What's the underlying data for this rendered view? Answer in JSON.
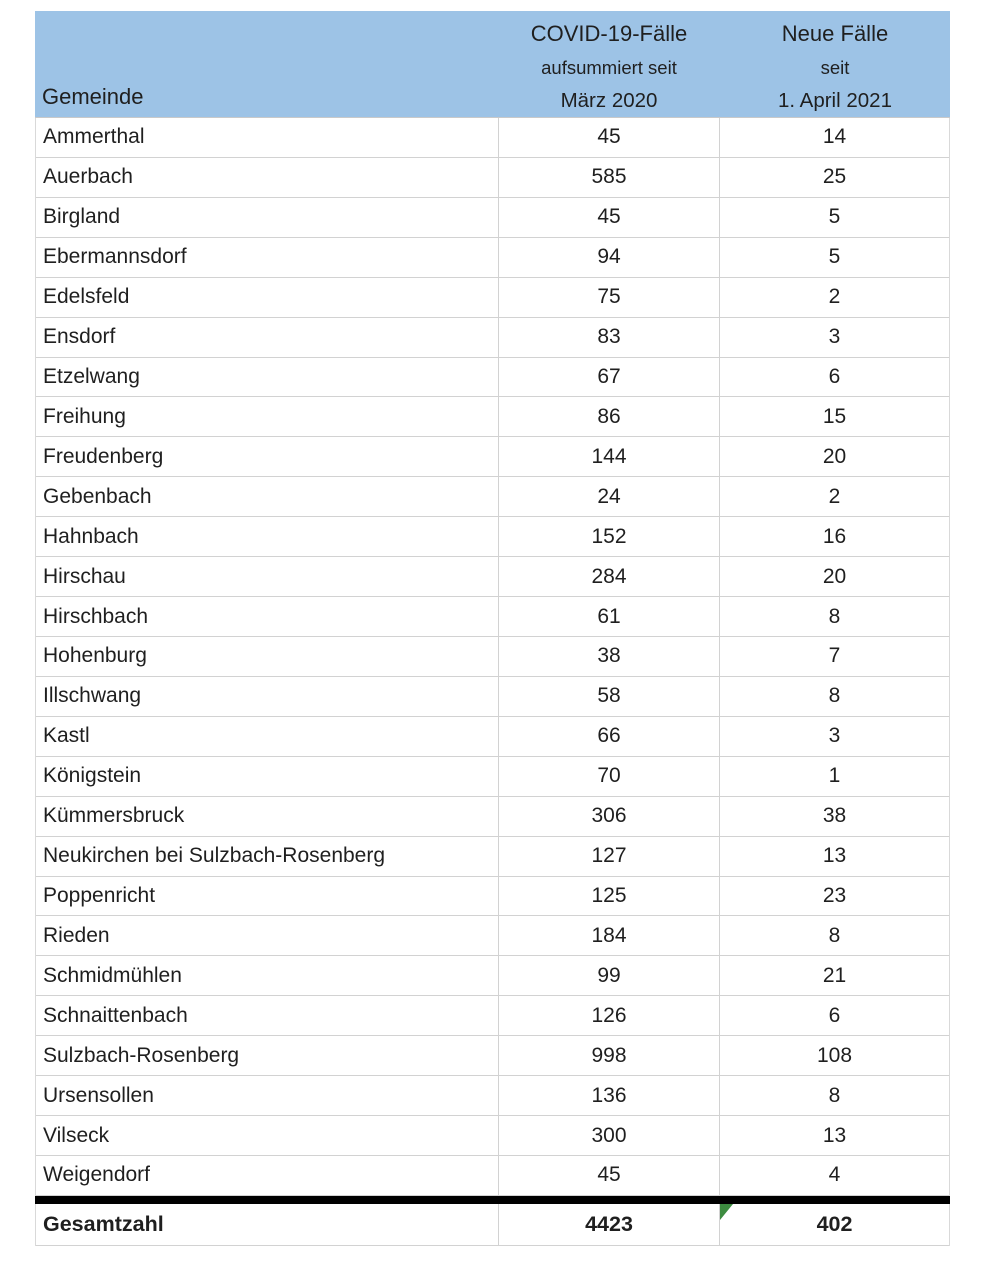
{
  "table": {
    "header": {
      "gemeinde": "Gemeinde",
      "cases_line1": "COVID-19-Fälle",
      "cases_line2": "aufsummiert seit",
      "cases_line3": "März 2020",
      "new_line1": "Neue Fälle",
      "new_line2": "seit",
      "new_line3": "1. April 2021"
    },
    "rows": [
      {
        "gemeinde": "Ammerthal",
        "cases": 45,
        "new": 14
      },
      {
        "gemeinde": "Auerbach",
        "cases": 585,
        "new": 25
      },
      {
        "gemeinde": "Birgland",
        "cases": 45,
        "new": 5
      },
      {
        "gemeinde": "Ebermannsdorf",
        "cases": 94,
        "new": 5
      },
      {
        "gemeinde": "Edelsfeld",
        "cases": 75,
        "new": 2
      },
      {
        "gemeinde": "Ensdorf",
        "cases": 83,
        "new": 3
      },
      {
        "gemeinde": "Etzelwang",
        "cases": 67,
        "new": 6
      },
      {
        "gemeinde": "Freihung",
        "cases": 86,
        "new": 15
      },
      {
        "gemeinde": "Freudenberg",
        "cases": 144,
        "new": 20
      },
      {
        "gemeinde": "Gebenbach",
        "cases": 24,
        "new": 2
      },
      {
        "gemeinde": "Hahnbach",
        "cases": 152,
        "new": 16
      },
      {
        "gemeinde": "Hirschau",
        "cases": 284,
        "new": 20
      },
      {
        "gemeinde": "Hirschbach",
        "cases": 61,
        "new": 8
      },
      {
        "gemeinde": "Hohenburg",
        "cases": 38,
        "new": 7
      },
      {
        "gemeinde": "Illschwang",
        "cases": 58,
        "new": 8
      },
      {
        "gemeinde": "Kastl",
        "cases": 66,
        "new": 3
      },
      {
        "gemeinde": "Königstein",
        "cases": 70,
        "new": 1
      },
      {
        "gemeinde": "Kümmersbruck",
        "cases": 306,
        "new": 38
      },
      {
        "gemeinde": "Neukirchen bei Sulzbach-Rosenberg",
        "cases": 127,
        "new": 13
      },
      {
        "gemeinde": "Poppenricht",
        "cases": 125,
        "new": 23
      },
      {
        "gemeinde": "Rieden",
        "cases": 184,
        "new": 8
      },
      {
        "gemeinde": "Schmidmühlen",
        "cases": 99,
        "new": 21
      },
      {
        "gemeinde": "Schnaittenbach",
        "cases": 126,
        "new": 6
      },
      {
        "gemeinde": "Sulzbach-Rosenberg",
        "cases": 998,
        "new": 108
      },
      {
        "gemeinde": "Ursensollen",
        "cases": 136,
        "new": 8
      },
      {
        "gemeinde": "Vilseck",
        "cases": 300,
        "new": 13
      },
      {
        "gemeinde": "Weigendorf",
        "cases": 45,
        "new": 4
      }
    ],
    "total": {
      "label": "Gesamtzahl",
      "cases": 4423,
      "new": 402
    }
  },
  "icons": {
    "error_indicator": "excel-green-error-triangle"
  },
  "colors": {
    "header_bg": "#9DC3E6",
    "grid_line": "#D2D2D2",
    "thick_divider": "#000000",
    "error_triangle": "#3D8C40",
    "text": "#1F1F1F"
  }
}
